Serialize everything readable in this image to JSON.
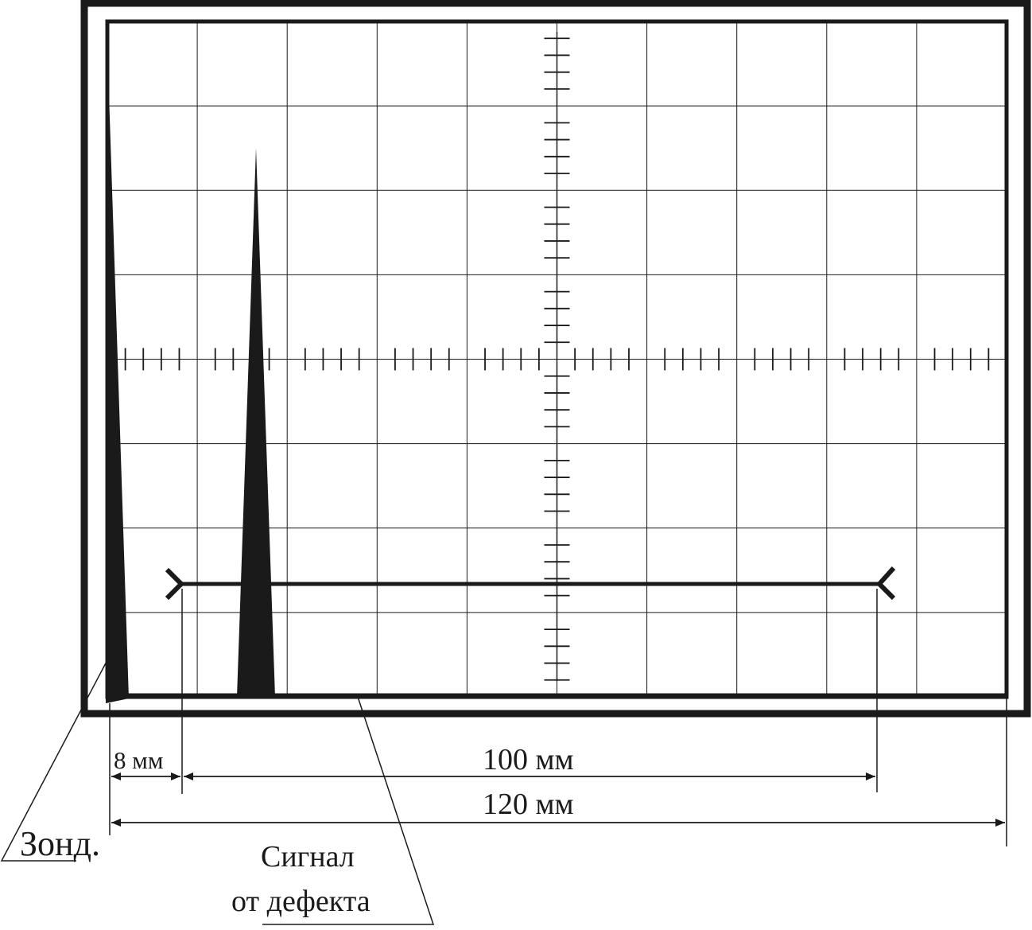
{
  "diagram": {
    "labels": {
      "dim_8": "8 мм",
      "dim_100": "100 мм",
      "dim_120": "120 мм",
      "probe": "Зонд.",
      "signal_line1": "Сигнал",
      "signal_line2": "от дефекта"
    },
    "colors": {
      "ink": "#1a1a1a",
      "background": "#ffffff"
    }
  }
}
